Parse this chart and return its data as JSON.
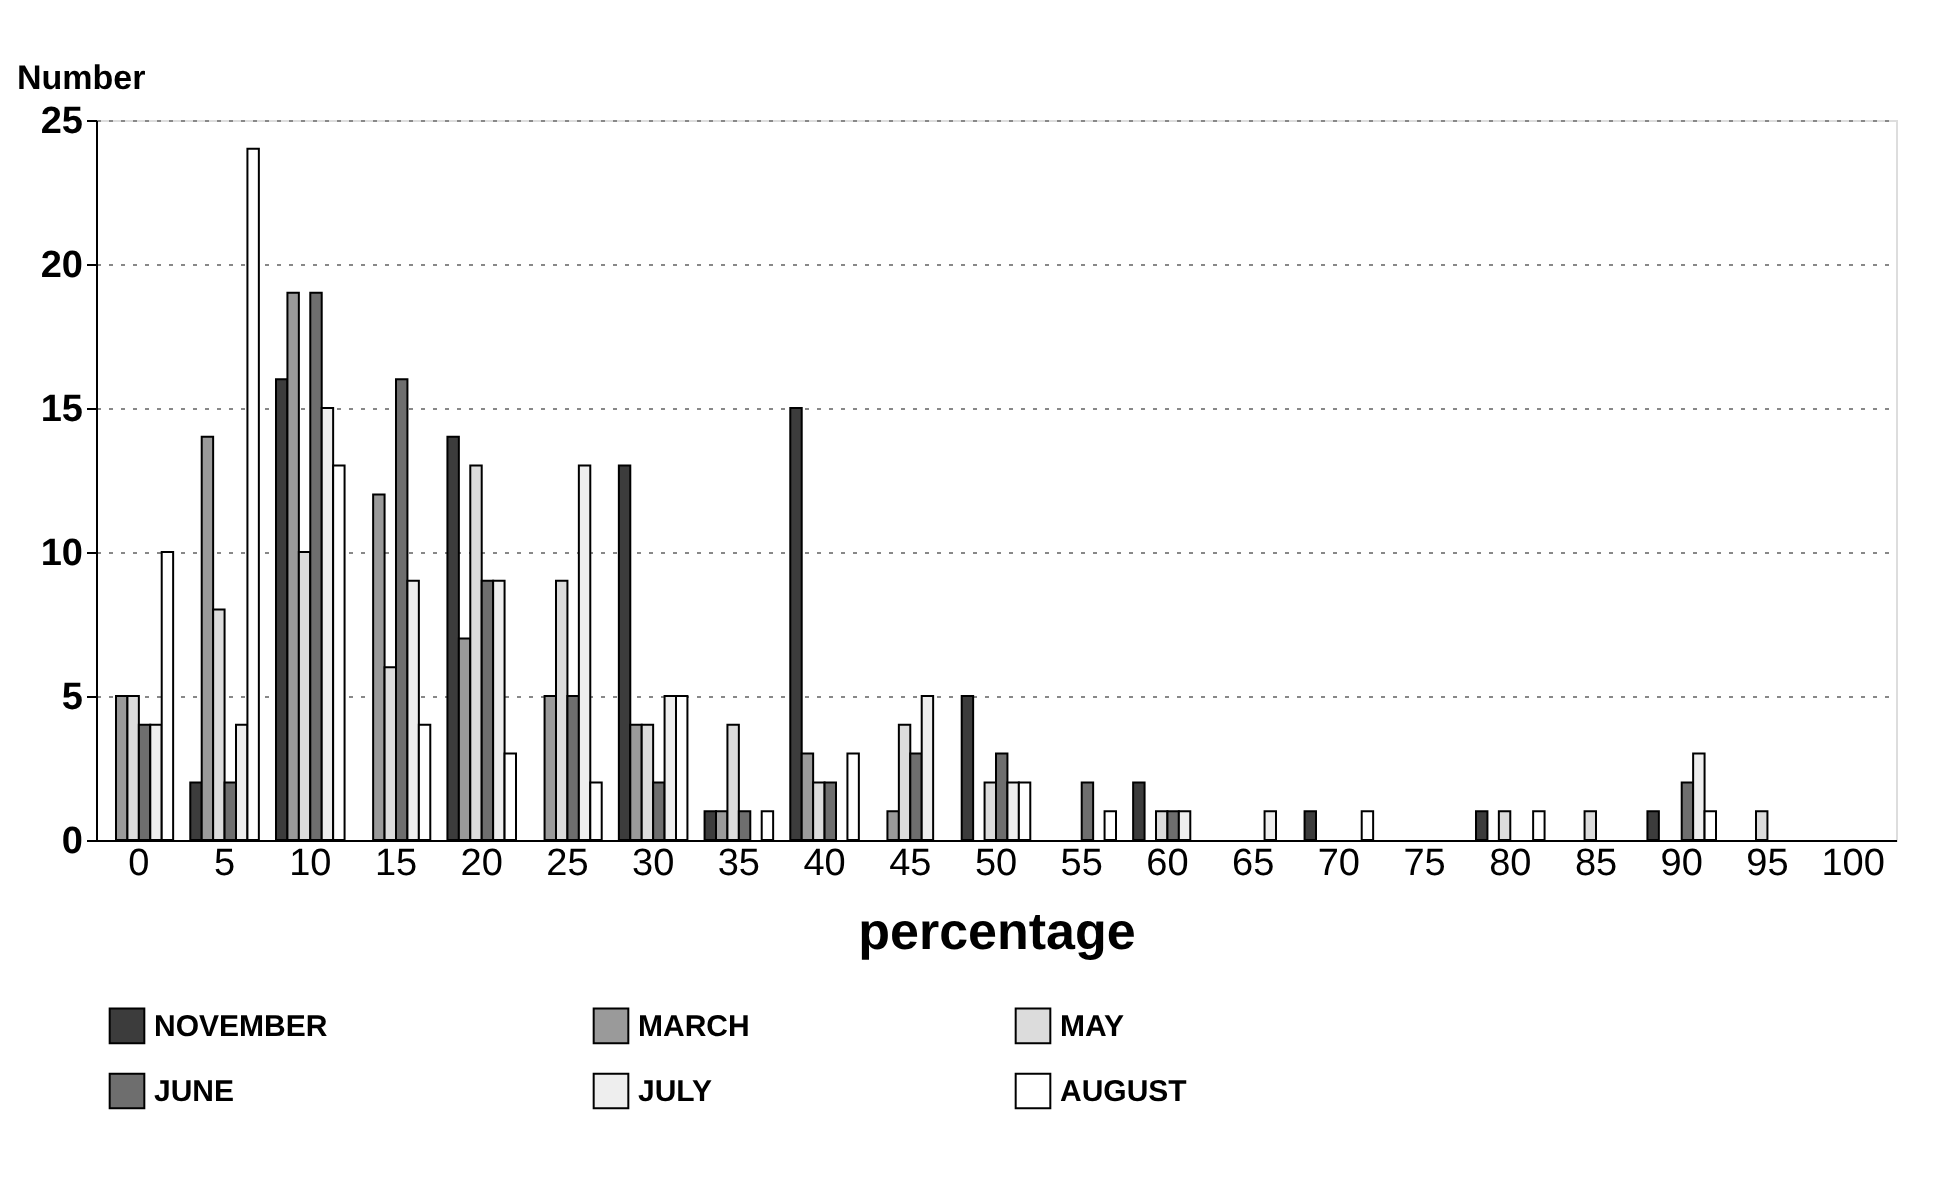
{
  "chart_data": {
    "type": "bar",
    "xlabel": "percentage",
    "ylabel": "Number",
    "categories": [
      "0",
      "5",
      "10",
      "15",
      "20",
      "25",
      "30",
      "35",
      "40",
      "45",
      "50",
      "55",
      "60",
      "65",
      "70",
      "75",
      "80",
      "85",
      "90",
      "95",
      "100"
    ],
    "series": [
      {
        "name": "NOVEMBER",
        "color": "#3c3c3c",
        "values": [
          null,
          2,
          16,
          null,
          14,
          null,
          13,
          1,
          15,
          null,
          5,
          null,
          2,
          null,
          1,
          null,
          1,
          null,
          1,
          null,
          null
        ]
      },
      {
        "name": "MARCH",
        "color": "#9a9a9a",
        "values": [
          5,
          14,
          19,
          12,
          7,
          5,
          4,
          1,
          3,
          1,
          null,
          null,
          null,
          null,
          null,
          null,
          null,
          null,
          null,
          null,
          null
        ]
      },
      {
        "name": "MAY",
        "color": "#dcdcdc",
        "values": [
          5,
          8,
          10,
          6,
          13,
          9,
          4,
          4,
          2,
          4,
          2,
          null,
          1,
          null,
          null,
          null,
          1,
          1,
          null,
          1,
          null
        ]
      },
      {
        "name": "JUNE",
        "color": "#6e6e6e",
        "values": [
          4,
          2,
          19,
          16,
          9,
          5,
          2,
          1,
          2,
          3,
          3,
          2,
          1,
          null,
          null,
          null,
          null,
          null,
          2,
          null,
          null
        ]
      },
      {
        "name": "JULY",
        "color": "#eeeeee",
        "values": [
          4,
          4,
          15,
          9,
          9,
          13,
          5,
          null,
          null,
          5,
          2,
          null,
          1,
          1,
          null,
          null,
          null,
          null,
          3,
          null,
          null
        ]
      },
      {
        "name": "AUGUST",
        "color": "#ffffff",
        "values": [
          10,
          24,
          13,
          4,
          3,
          2,
          5,
          1,
          3,
          null,
          2,
          1,
          null,
          null,
          1,
          null,
          1,
          null,
          1,
          null,
          null
        ]
      }
    ],
    "ylim": [
      0,
      25
    ],
    "yticks": [
      0,
      5,
      10,
      15,
      20,
      25
    ],
    "grid": "y",
    "legend": "bottom"
  }
}
